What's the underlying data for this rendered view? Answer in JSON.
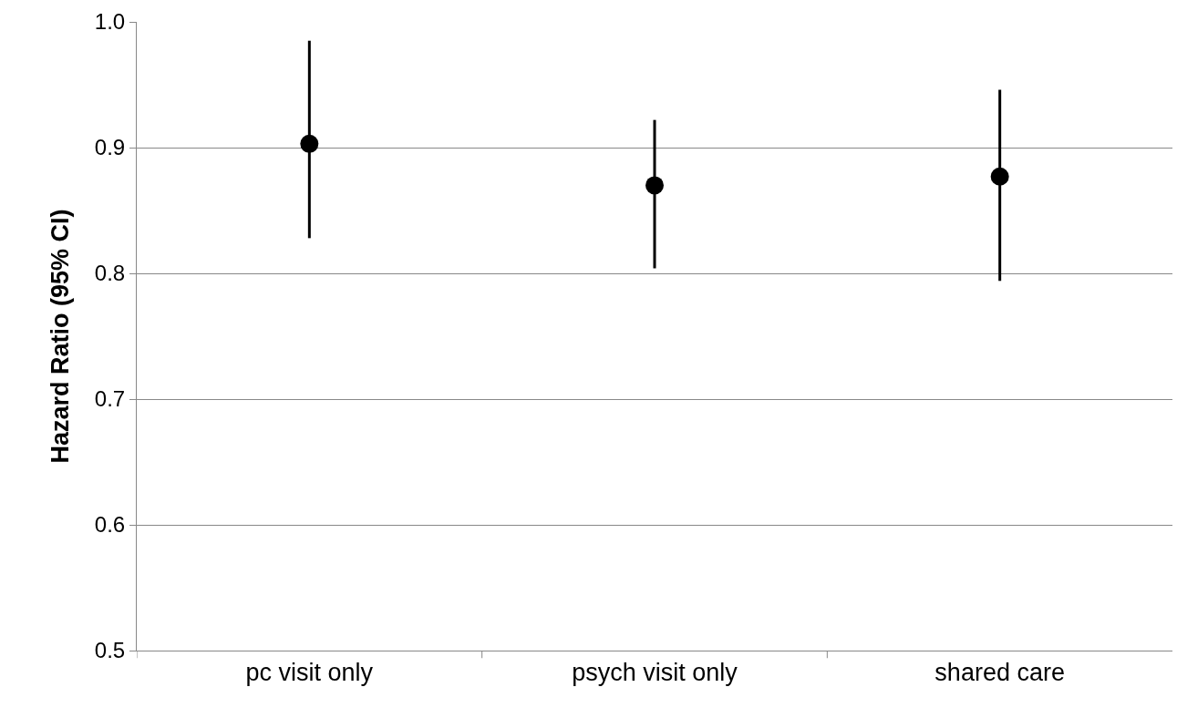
{
  "chart_data": {
    "type": "scatter",
    "ylabel": "Hazard Ratio (95% CI)",
    "categories": [
      "pc visit only",
      "psych visit only",
      "shared care"
    ],
    "values": [
      0.903,
      0.87,
      0.877
    ],
    "errors": [
      [
        0.828,
        0.985
      ],
      [
        0.804,
        0.922
      ],
      [
        0.794,
        0.946
      ]
    ],
    "color": "#000000",
    "marker": "circle",
    "ylim": [
      0.5,
      1.0
    ],
    "yticks": [
      0.5,
      0.6,
      0.7,
      0.8,
      0.9,
      {
        "value": 1.0,
        "label": "1.0"
      }
    ],
    "grid": "y"
  }
}
